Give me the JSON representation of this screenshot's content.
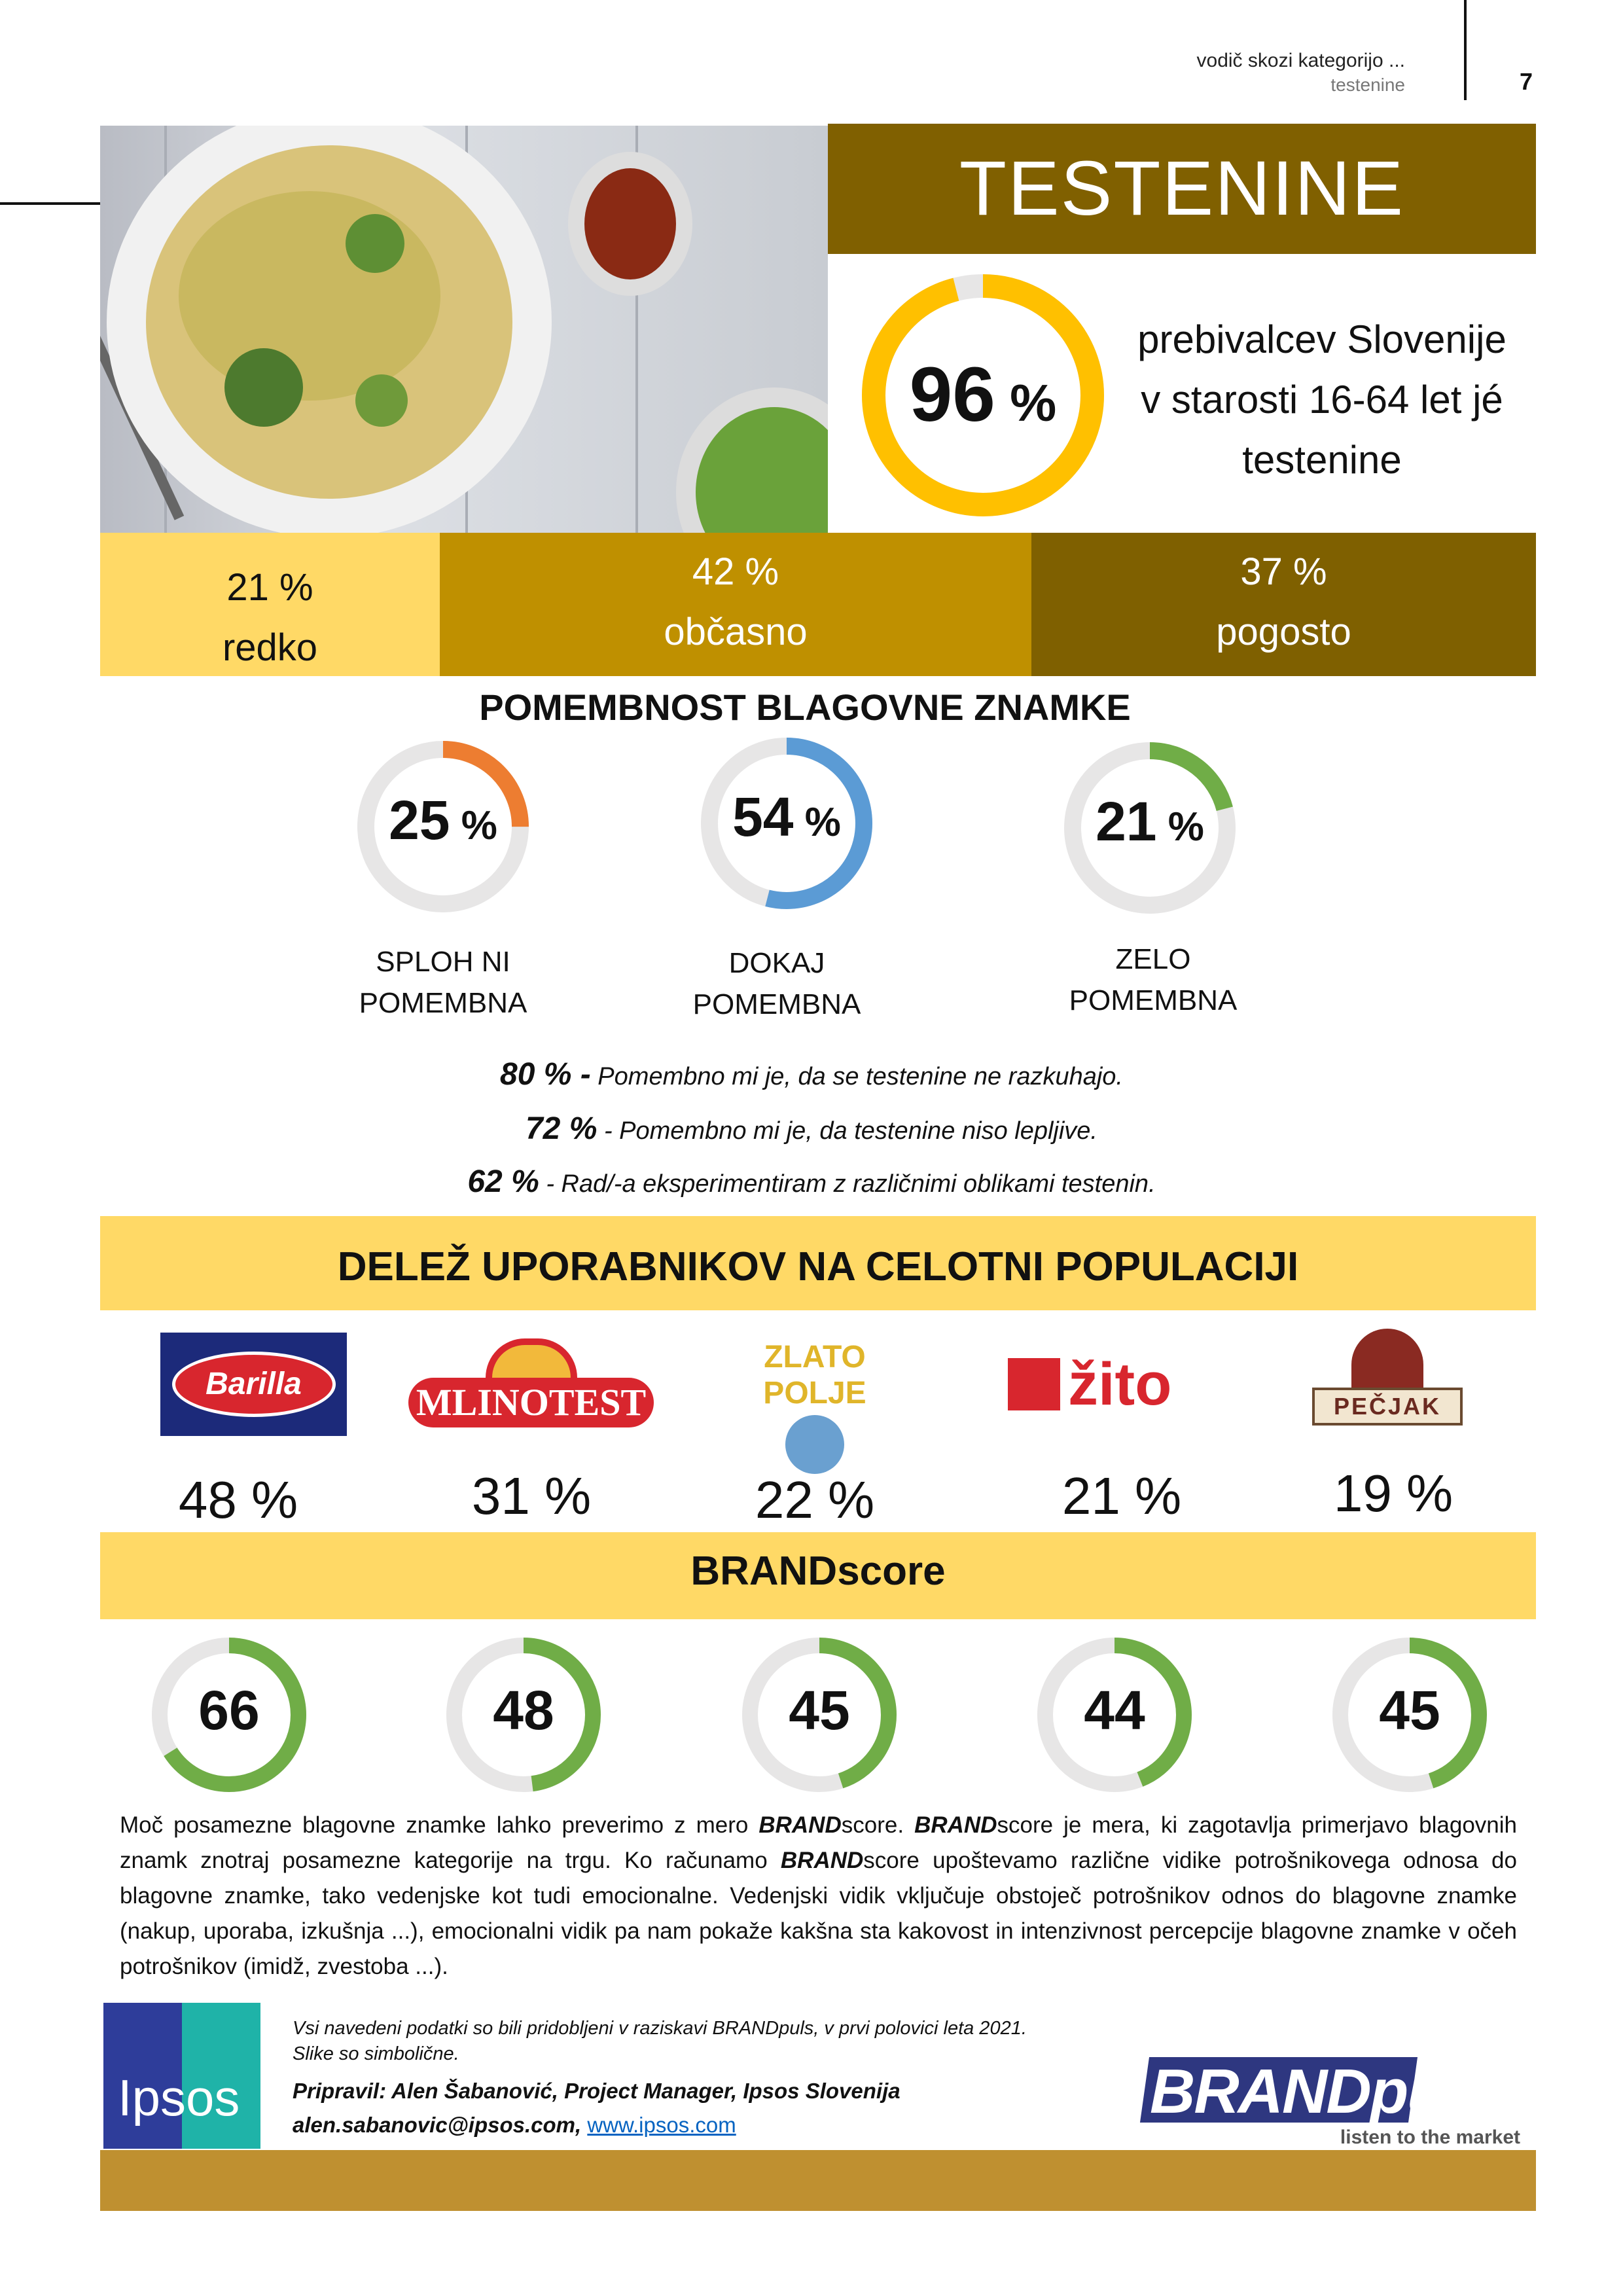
{
  "header": {
    "line1": "vodič skozi kategorijo ...",
    "line2": "testenine",
    "page": "7"
  },
  "title": "TESTENINE",
  "penetration": {
    "value": 96,
    "label": "96",
    "unit": "%",
    "text": [
      "prebivalcev Slovenije",
      "v starosti 16-64 let jé",
      "testenine"
    ],
    "color": "#FFC000"
  },
  "frequency": [
    {
      "value": "21 %",
      "label": "redko",
      "color": "#FFD966"
    },
    {
      "value": "42 %",
      "label": "občasno",
      "color": "#BF9000"
    },
    {
      "value": "37 %",
      "label": "pogosto",
      "color": "#7F6000"
    }
  ],
  "importance": {
    "title": "POMEMBNOST BLAGOVNE ZNAMKE",
    "items": [
      {
        "value": 25,
        "label": "25",
        "unit": "%",
        "line1": "SPLOH NI",
        "line2": "POMEMBNA",
        "color": "#ED7D31"
      },
      {
        "value": 54,
        "label": "54",
        "unit": "%",
        "line1": "DOKAJ",
        "line2": "POMEMBNA",
        "color": "#5B9BD5"
      },
      {
        "value": 21,
        "label": "21",
        "unit": "%",
        "line1": "ZELO",
        "line2": "POMEMBNA",
        "color": "#70AD47"
      }
    ]
  },
  "statements": [
    {
      "pct": "80 % -",
      "text": " Pomembno mi je, da se testenine ne razkuhajo."
    },
    {
      "pct": "72 %",
      "text": " - Pomembno mi je, da testenine niso lepljive."
    },
    {
      "pct": "62 %",
      "text": " - Rad/-a eksperimentiram z različnimi oblikami testenin."
    }
  ],
  "share": {
    "title": "DELEŽ UPORABNIKOV NA CELOTNI POPULACIJI",
    "brands": [
      {
        "logo": "Barilla",
        "value": "48 %"
      },
      {
        "logo": "MLINOTEST",
        "value": "31 %"
      },
      {
        "logo": "ZLATO POLJE",
        "value": "22 %"
      },
      {
        "logo": "žito",
        "value": "21 %"
      },
      {
        "logo": "PEČJAK",
        "value": "19 %"
      }
    ]
  },
  "brandscore": {
    "title": "BRANDscore",
    "color": "#70AD47",
    "scores": [
      66,
      48,
      45,
      44,
      45
    ]
  },
  "paragraph": {
    "parts": [
      "Moč posamezne blagovne znamke lahko preverimo z mero ",
      "BRAND",
      "score. ",
      "BRAND",
      "score je mera, ki zagotavlja primerjavo blagovnih znamk znotraj posamezne kategorije na trgu. Ko računamo ",
      "BRAND",
      "score upoštevamo različne vidike potrošnikovega odnosa do blagovne znamke, tako vedenjske kot tudi emocionalne. Vedenjski vidik vključuje obstoječ potrošnikov odnos do blagovne znamke (nakup, uporaba, izkušnja ...), emocionalni vidik pa nam pokaže kakšna sta kakovost in intenzivnost percepcije blagovne znamke v očeh potrošnikov (imidž, zvestoba ...)."
    ]
  },
  "footer": {
    "note1": "Vsi navedeni podatki so bili pridobljeni v raziskavi BRANDpuls, v prvi polovici leta 2021.",
    "note2": "Slike so simbolične.",
    "author": "Pripravil: Alen Šabanović, Project Manager, Ipsos Slovenija",
    "email": "alen.sabanovic@ipsos.com, ",
    "link": "www.ipsos.com",
    "ipsos_logo": "Ipsos",
    "brandpuls_logo": "BRANDpuls",
    "brandpuls_tag": "listen to the market"
  }
}
